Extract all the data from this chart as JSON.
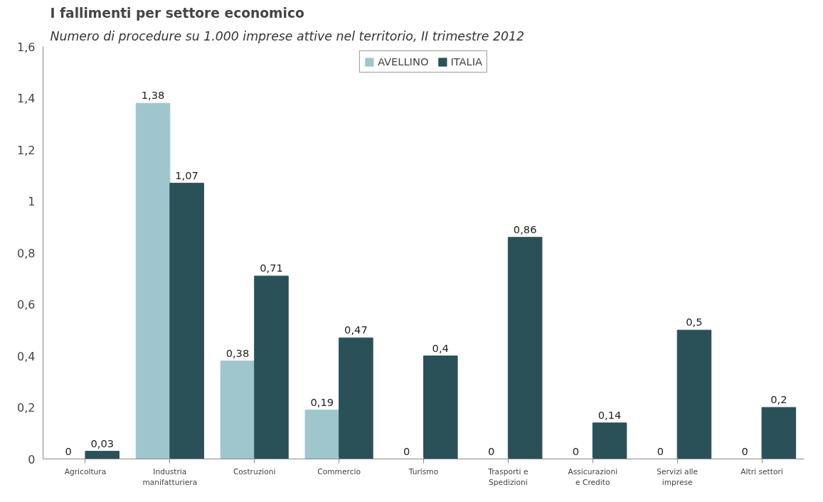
{
  "chart_data": {
    "type": "bar",
    "title": "I fallimenti per settore economico",
    "subtitle": "Numero di procedure su 1.000 imprese attive nel territorio, II trimestre 2012",
    "categories": [
      "Agricoltura",
      "Industria manifatturiera",
      "Costruzioni",
      "Commercio",
      "Turismo",
      "Trasporti e Spedizioni",
      "Assicurazioni e Credito",
      "Servizi alle imprese",
      "Altri settori"
    ],
    "series": [
      {
        "name": "AVELLINO",
        "color": "#9fc6cc",
        "values": [
          0,
          1.38,
          0.38,
          0.19,
          0,
          0,
          0,
          0,
          0
        ],
        "value_labels": [
          "0",
          "1,38",
          "0,38",
          "0,19",
          "0",
          "0",
          "0",
          "0",
          "0"
        ]
      },
      {
        "name": "ITALIA",
        "color": "#2b5158",
        "values": [
          0.03,
          1.07,
          0.71,
          0.47,
          0.4,
          0.86,
          0.14,
          0.5,
          0.2
        ],
        "value_labels": [
          "0,03",
          "1,07",
          "0,71",
          "0,47",
          "0,4",
          "0,86",
          "0,14",
          "0,5",
          "0,2"
        ]
      }
    ],
    "ylim": [
      0,
      1.6
    ],
    "yticks": [
      0,
      {
        "value": 0.2,
        "label": "0,2"
      },
      {
        "value": 0.4,
        "label": "0,4"
      },
      {
        "value": 0.6,
        "label": "0,6"
      },
      {
        "value": 0.8,
        "label": "0,8"
      },
      1,
      {
        "value": 1.2,
        "label": "1,2"
      },
      {
        "value": 1.4,
        "label": "1,4"
      },
      {
        "value": 1.6,
        "label": "1,6"
      }
    ],
    "grid": false,
    "legend": "top"
  }
}
